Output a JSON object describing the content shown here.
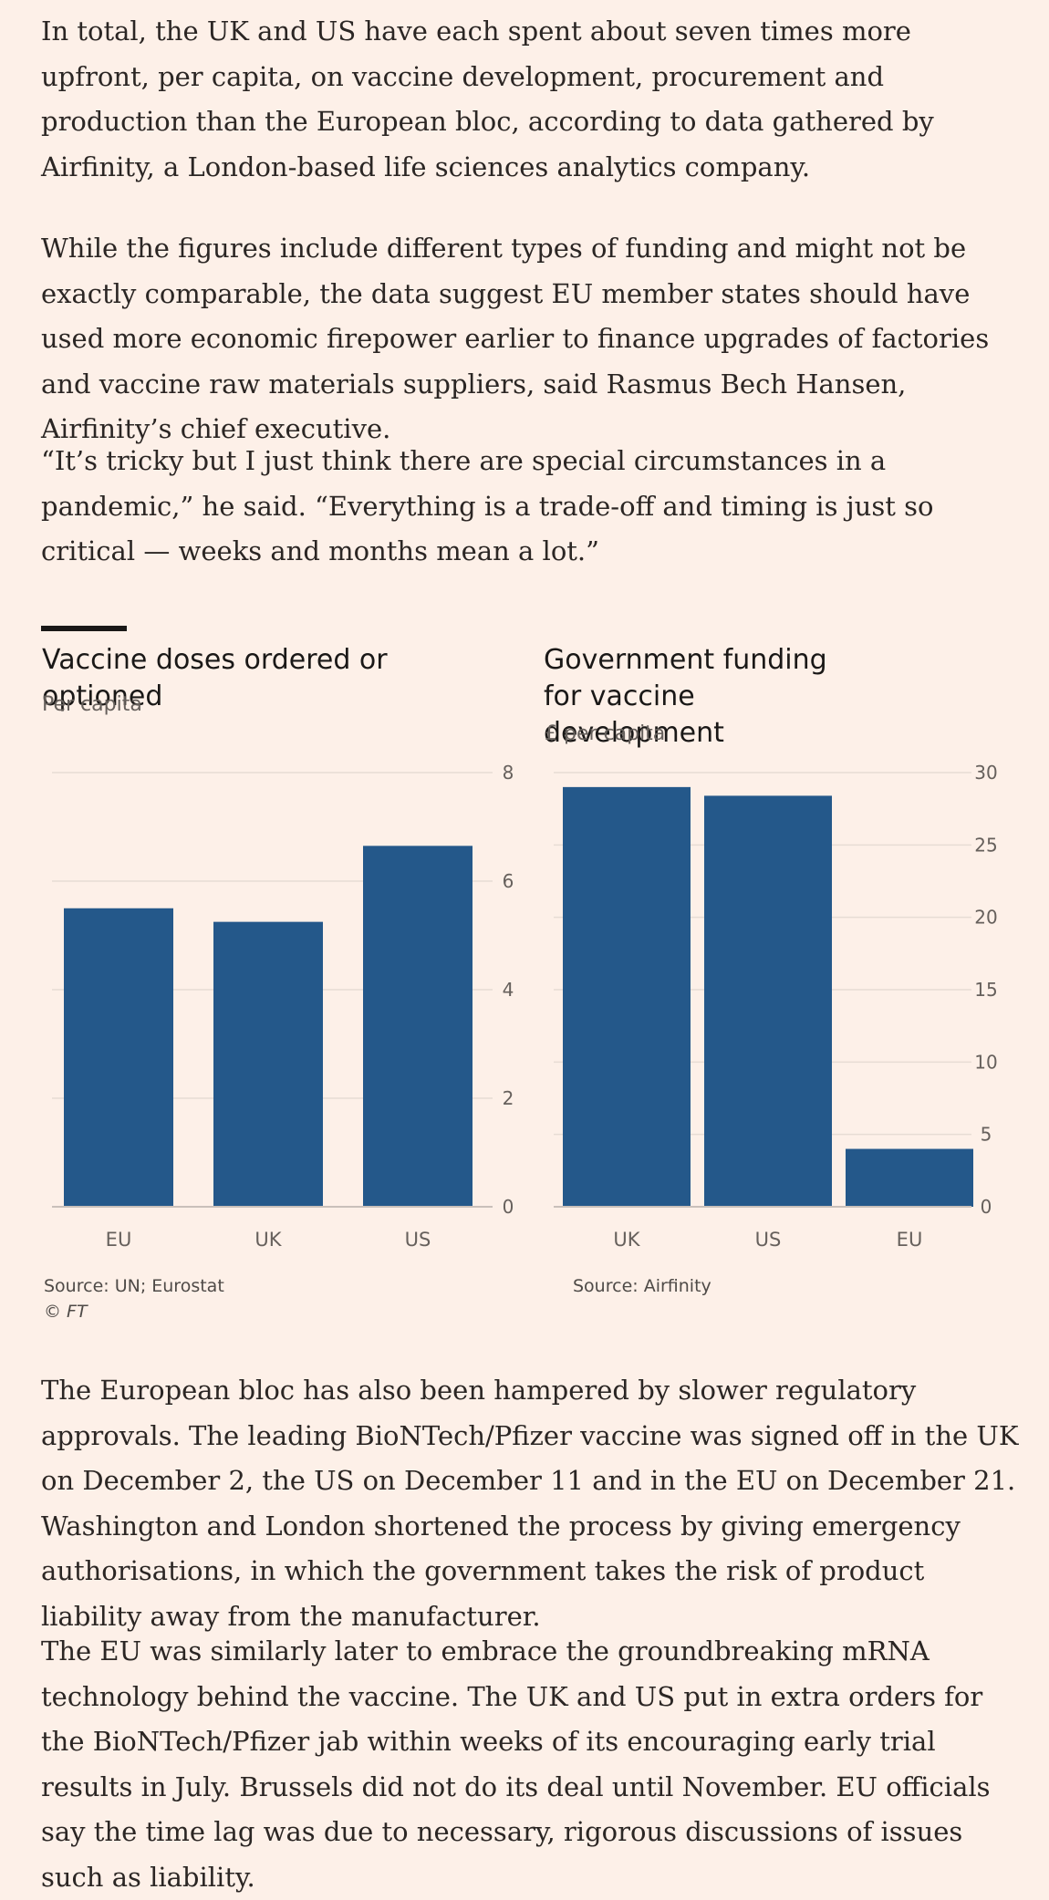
{
  "article": {
    "para1": "In total, the UK and US have each spent about seven times more upfront, per capita, on vaccine development, procurement and production than the European bloc, according to data gathered by Airfinity, a London-based life sciences analytics company.",
    "para2": "While the figures include different types of funding and might not be exactly comparable, the data suggest EU member states should have used more economic firepower earlier to finance upgrades of factories and vaccine raw materials suppliers, said Rasmus Bech Hansen, Airfinity’s chief executive.",
    "para3": "“It’s tricky but I just think there are special circumstances in a pandemic,” he said. “Everything is a trade-off and timing is just so critical — weeks and months mean a lot.”",
    "para4": "The European bloc has also been hampered by slower regulatory approvals. The leading BioNTech/Pfizer vaccine was signed off in the UK on December 2, the US on December 11 and in the EU on December 21. Washington and London shortened the process by giving emergency authorisations, in which the government takes the risk of product liability away from the manufacturer.",
    "para5": "The EU was similarly later to embrace the groundbreaking mRNA technology behind the vaccine. The UK and US put in extra orders for the BioNTech/Pfizer jab within weeks of its encouraging early trial results in July. Brussels did not do its deal until November. EU officials say the time lag was due to necessary, rigorous discussions of issues such as liability."
  },
  "colors": {
    "background": "#fdf0e8",
    "bar": "#24588a",
    "grid": "#e7dcd4",
    "axis": "#c9c0ba",
    "tick_text": "#66605c"
  },
  "chart_data": [
    {
      "type": "bar",
      "title": "Vaccine doses ordered or optioned",
      "subtitle": "Per capita",
      "categories": [
        "EU",
        "UK",
        "US"
      ],
      "values": [
        5.5,
        5.25,
        6.65
      ],
      "yticks": [
        "0",
        "2",
        "4",
        "6",
        "8"
      ],
      "ylim": [
        0,
        8
      ],
      "yaxis_side": "right",
      "grid": true,
      "source": "Source: UN; Eurostat",
      "credit": "© FT"
    },
    {
      "type": "bar",
      "title": "Government funding for vaccine development",
      "subtitle": "£ per capita",
      "categories": [
        "UK",
        "US",
        "EU"
      ],
      "values": [
        29,
        28.4,
        4
      ],
      "yticks": [
        "0",
        "5",
        "10",
        "15",
        "20",
        "25",
        "30"
      ],
      "ylim": [
        0,
        30
      ],
      "yaxis_side": "right",
      "grid": true,
      "source": "Source: Airfinity"
    }
  ]
}
